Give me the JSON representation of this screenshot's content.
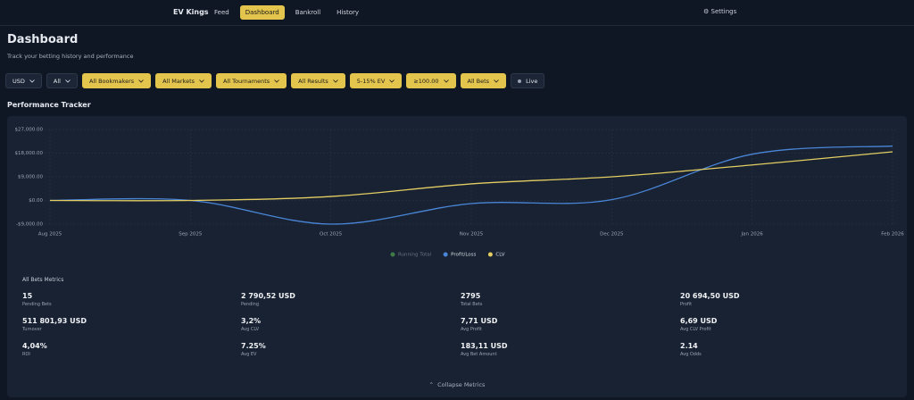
{
  "nav": {
    "brand": "EV Kings",
    "items": [
      {
        "label": "Feed",
        "active": false
      },
      {
        "label": "Dashboard",
        "active": true
      },
      {
        "label": "Bankroll",
        "active": false
      },
      {
        "label": "History",
        "active": false
      }
    ],
    "settings": "Settings"
  },
  "header": {
    "title": "Dashboard",
    "subtitle": "Track your betting history and performance"
  },
  "filters": [
    {
      "label": "USD",
      "highlighted": false
    },
    {
      "label": "All",
      "highlighted": false
    },
    {
      "label": "All Bookmakers",
      "highlighted": true
    },
    {
      "label": "All Markets",
      "highlighted": true
    },
    {
      "label": "All Tournaments",
      "highlighted": true
    },
    {
      "label": "All Results",
      "highlighted": true
    },
    {
      "label": "5-15% EV",
      "highlighted": true
    },
    {
      "label": "≥100.00",
      "highlighted": true
    },
    {
      "label": "All Bets",
      "highlighted": true
    },
    {
      "label": "Live",
      "highlighted": false
    }
  ],
  "section_title": "Performance Tracker",
  "chart_data": {
    "type": "line",
    "categories": [
      "Aug 2025",
      "Sep 2025",
      "Oct 2025",
      "Nov 2025",
      "Dec 2025",
      "Jan 2026",
      "Feb 2026"
    ],
    "series": [
      {
        "name": "Profit/Loss",
        "color": "#4a86d8",
        "values": [
          0,
          0,
          -9000,
          -1200,
          300,
          17600,
          20700
        ]
      },
      {
        "name": "CLV",
        "color": "#e3cd63",
        "values": [
          0,
          0,
          1500,
          6300,
          9000,
          13500,
          18500
        ]
      }
    ],
    "hidden_series": [
      {
        "name": "Running Total",
        "color": "#3f7a47"
      }
    ],
    "ylim": [
      -9000,
      27000
    ],
    "yticks": [
      {
        "value": -9000,
        "label": "-$9,000.00"
      },
      {
        "value": 0,
        "label": "$0.00"
      },
      {
        "value": 9000,
        "label": "$9,000.00"
      },
      {
        "value": 18000,
        "label": "$18,000.00"
      },
      {
        "value": 27000,
        "label": "$27,000.00"
      }
    ],
    "grid": true
  },
  "metrics": {
    "title": "All Bets Metrics",
    "items": [
      {
        "value": "15",
        "label": "Pending Bets"
      },
      {
        "value": "2 790,52 USD",
        "label": "Pending"
      },
      {
        "value": "2795",
        "label": "Total Bets"
      },
      {
        "value": "20 694,50 USD",
        "label": "Profit"
      },
      {
        "value": "511 801,93 USD",
        "label": "Turnover"
      },
      {
        "value": "3,2%",
        "label": "Avg CLV"
      },
      {
        "value": "7,71 USD",
        "label": "Avg Profit"
      },
      {
        "value": "6,69 USD",
        "label": "Avg CLV Profit"
      },
      {
        "value": "4,04%",
        "label": "ROI"
      },
      {
        "value": "7.25%",
        "label": "Avg EV"
      },
      {
        "value": "183,11 USD",
        "label": "Avg Bet Amount"
      },
      {
        "value": "2.14",
        "label": "Avg Odds"
      }
    ],
    "collapse": "Collapse Metrics"
  }
}
